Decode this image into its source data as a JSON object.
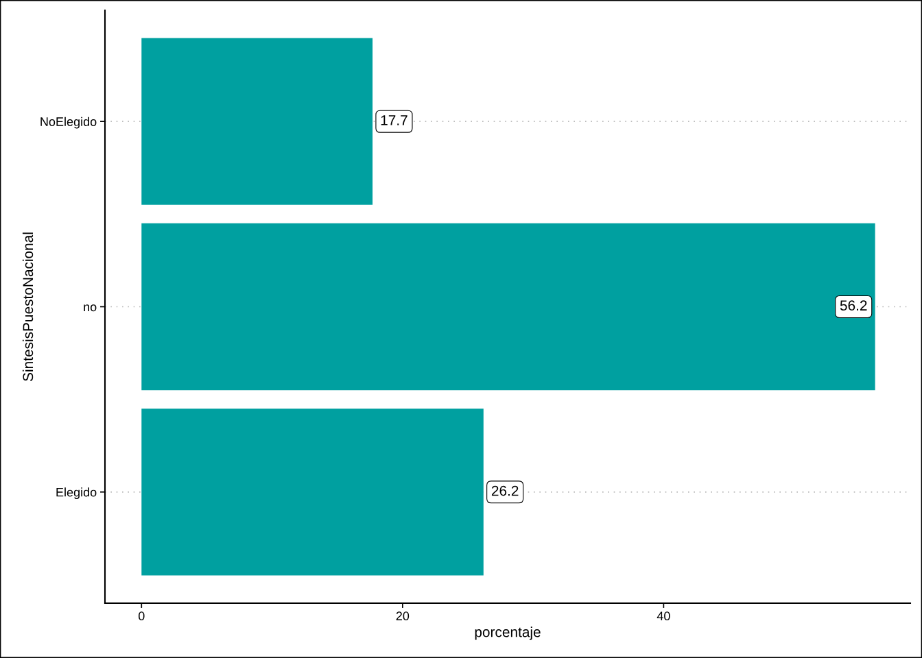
{
  "chart_data": {
    "type": "bar",
    "orientation": "horizontal",
    "categories": [
      "NoElegido",
      "no",
      "Elegido"
    ],
    "values": [
      17.7,
      56.2,
      26.2
    ],
    "color": "#00a0a0",
    "xlabel": "porcentaje",
    "ylabel": "SintesisPuestoNacional",
    "xlim": [
      -2.8,
      58.9
    ],
    "xticks": [
      0,
      20,
      40
    ],
    "grid": "y",
    "data_labels": true
  }
}
